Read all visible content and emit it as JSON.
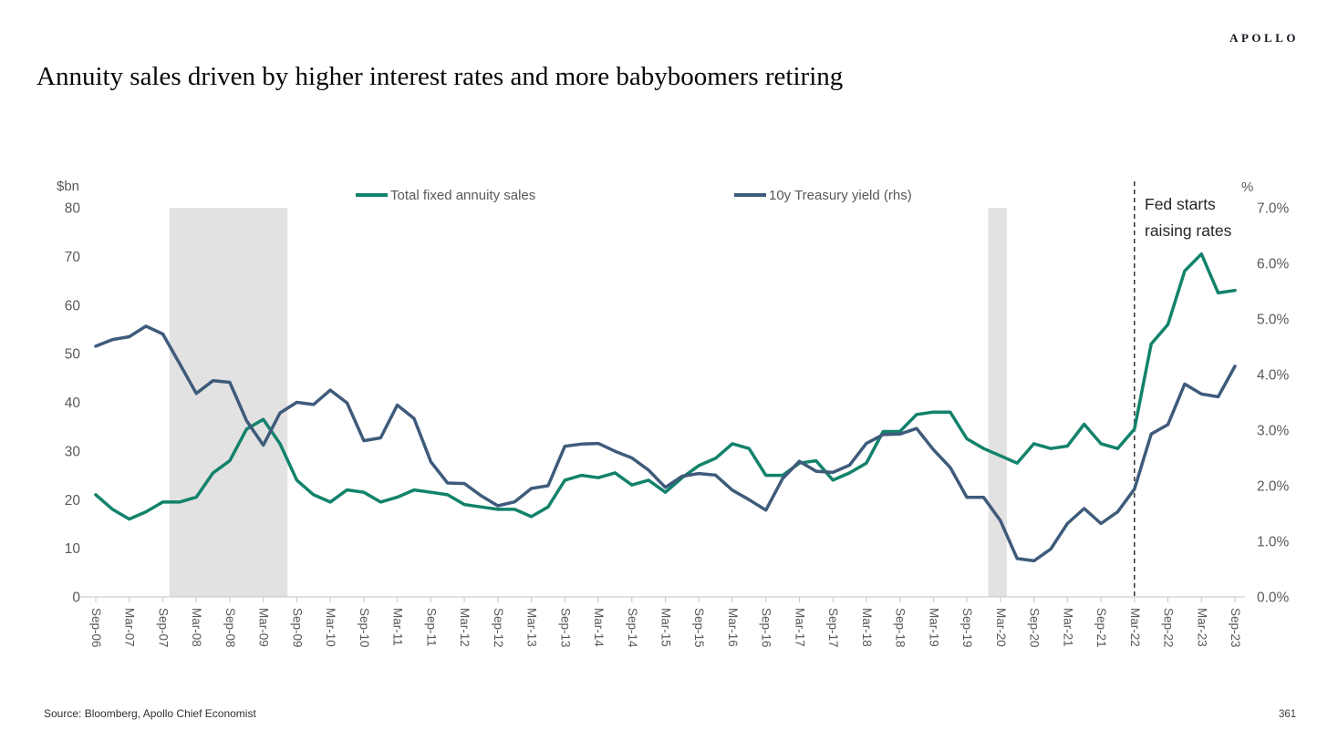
{
  "header": {
    "logo": "APOLLO",
    "title": "Annuity sales driven by higher interest rates and more babyboomers retiring"
  },
  "footer": {
    "source": "Source: Bloomberg, Apollo Chief Economist",
    "page_number": "361"
  },
  "chart": {
    "left_axis": {
      "unit_label": "$bn",
      "min": 0,
      "max": 80,
      "step": 10
    },
    "right_axis": {
      "unit_label": "%",
      "min": 0,
      "max": 7,
      "step": 1
    },
    "legend": [
      {
        "label": "Total fixed annuity sales",
        "color": "#12826B"
      },
      {
        "label": "10y Treasury yield (rhs)",
        "color": "#3E5B7B"
      }
    ],
    "annotation": {
      "lines": [
        "Fed starts",
        "raising rates"
      ],
      "at_label": "Mar-22",
      "at_index": 62
    },
    "recession_bands": [
      {
        "from_index": 4.4,
        "to_index": 11.45
      },
      {
        "from_index": 53.28,
        "to_index": 54.38
      }
    ],
    "band_color": "#e2e2e2",
    "axis_text_color": "#595959",
    "axis_line_color": "#c6c6c6"
  },
  "chart_data": {
    "type": "line",
    "title": "Annuity sales driven by higher interest rates and more babyboomers retiring",
    "x": [
      "Sep-06",
      "Dec-06",
      "Mar-07",
      "Jun-07",
      "Sep-07",
      "Dec-07",
      "Mar-08",
      "Jun-08",
      "Sep-08",
      "Dec-08",
      "Mar-09",
      "Jun-09",
      "Sep-09",
      "Dec-09",
      "Mar-10",
      "Jun-10",
      "Sep-10",
      "Dec-10",
      "Mar-11",
      "Jun-11",
      "Sep-11",
      "Dec-11",
      "Mar-12",
      "Jun-12",
      "Sep-12",
      "Dec-12",
      "Mar-13",
      "Jun-13",
      "Sep-13",
      "Dec-13",
      "Mar-14",
      "Jun-14",
      "Sep-14",
      "Dec-14",
      "Mar-15",
      "Jun-15",
      "Sep-15",
      "Dec-15",
      "Mar-16",
      "Jun-16",
      "Sep-16",
      "Dec-16",
      "Mar-17",
      "Jun-17",
      "Sep-17",
      "Dec-17",
      "Mar-18",
      "Jun-18",
      "Sep-18",
      "Dec-18",
      "Mar-19",
      "Jun-19",
      "Sep-19",
      "Dec-19",
      "Mar-20",
      "Jun-20",
      "Sep-20",
      "Dec-20",
      "Mar-21",
      "Jun-21",
      "Sep-21",
      "Dec-21",
      "Mar-22",
      "Jun-22",
      "Sep-22",
      "Dec-22",
      "Mar-23",
      "Jun-23",
      "Sep-23"
    ],
    "x_tick_labels": [
      "Sep-06",
      "Mar-07",
      "Sep-07",
      "Mar-08",
      "Sep-08",
      "Mar-09",
      "Sep-09",
      "Mar-10",
      "Sep-10",
      "Mar-11",
      "Sep-11",
      "Mar-12",
      "Sep-12",
      "Mar-13",
      "Sep-13",
      "Mar-14",
      "Sep-14",
      "Mar-15",
      "Sep-15",
      "Mar-16",
      "Sep-16",
      "Mar-17",
      "Sep-17",
      "Mar-18",
      "Sep-18",
      "Mar-19",
      "Sep-19",
      "Mar-20",
      "Sep-20",
      "Mar-21",
      "Sep-21",
      "Mar-22",
      "Sep-22",
      "Mar-23",
      "Sep-23"
    ],
    "series": [
      {
        "name": "Total fixed annuity sales",
        "axis": "left",
        "unit": "$bn",
        "color": "#12826B",
        "values": [
          21,
          18,
          16,
          17.5,
          19.5,
          19.5,
          20.5,
          25.5,
          28,
          34.5,
          36.5,
          31.5,
          24,
          21,
          19.5,
          22,
          21.5,
          19.5,
          20.5,
          22,
          21.5,
          21,
          19,
          18.5,
          18,
          18,
          16.5,
          18.5,
          24,
          25,
          24.5,
          25.5,
          23,
          24,
          21.5,
          24.5,
          27,
          28.5,
          31.5,
          30.5,
          25,
          25,
          27.5,
          28,
          24,
          25.5,
          27.5,
          34,
          34,
          37.5,
          38,
          38,
          32.5,
          30.5,
          29,
          27.5,
          31.5,
          30.5,
          31,
          35.5,
          31.5,
          30.5,
          34.5,
          52,
          56,
          67,
          70.5,
          62.5,
          63
        ]
      },
      {
        "name": "10y Treasury yield (rhs)",
        "axis": "right",
        "unit": "%",
        "color": "#3E5B7B",
        "values": [
          4.51,
          4.63,
          4.68,
          4.87,
          4.73,
          4.2,
          3.66,
          3.89,
          3.86,
          3.17,
          2.73,
          3.31,
          3.5,
          3.46,
          3.72,
          3.49,
          2.81,
          2.86,
          3.45,
          3.21,
          2.43,
          2.05,
          2.04,
          1.82,
          1.64,
          1.71,
          1.95,
          2.0,
          2.71,
          2.75,
          2.76,
          2.62,
          2.5,
          2.28,
          1.97,
          2.17,
          2.22,
          2.19,
          1.92,
          1.75,
          1.56,
          2.13,
          2.44,
          2.26,
          2.24,
          2.37,
          2.76,
          2.92,
          2.93,
          3.03,
          2.65,
          2.33,
          1.79,
          1.79,
          1.37,
          0.69,
          0.65,
          0.86,
          1.32,
          1.59,
          1.32,
          1.53,
          1.94,
          2.93,
          3.1,
          3.83,
          3.65,
          3.6,
          4.15
        ]
      }
    ],
    "ylabel_left": "$bn",
    "ylabel_right": "%",
    "left_ylim": [
      0,
      80
    ],
    "right_ylim": [
      0,
      7
    ],
    "grid": false,
    "legend_position": "top"
  }
}
